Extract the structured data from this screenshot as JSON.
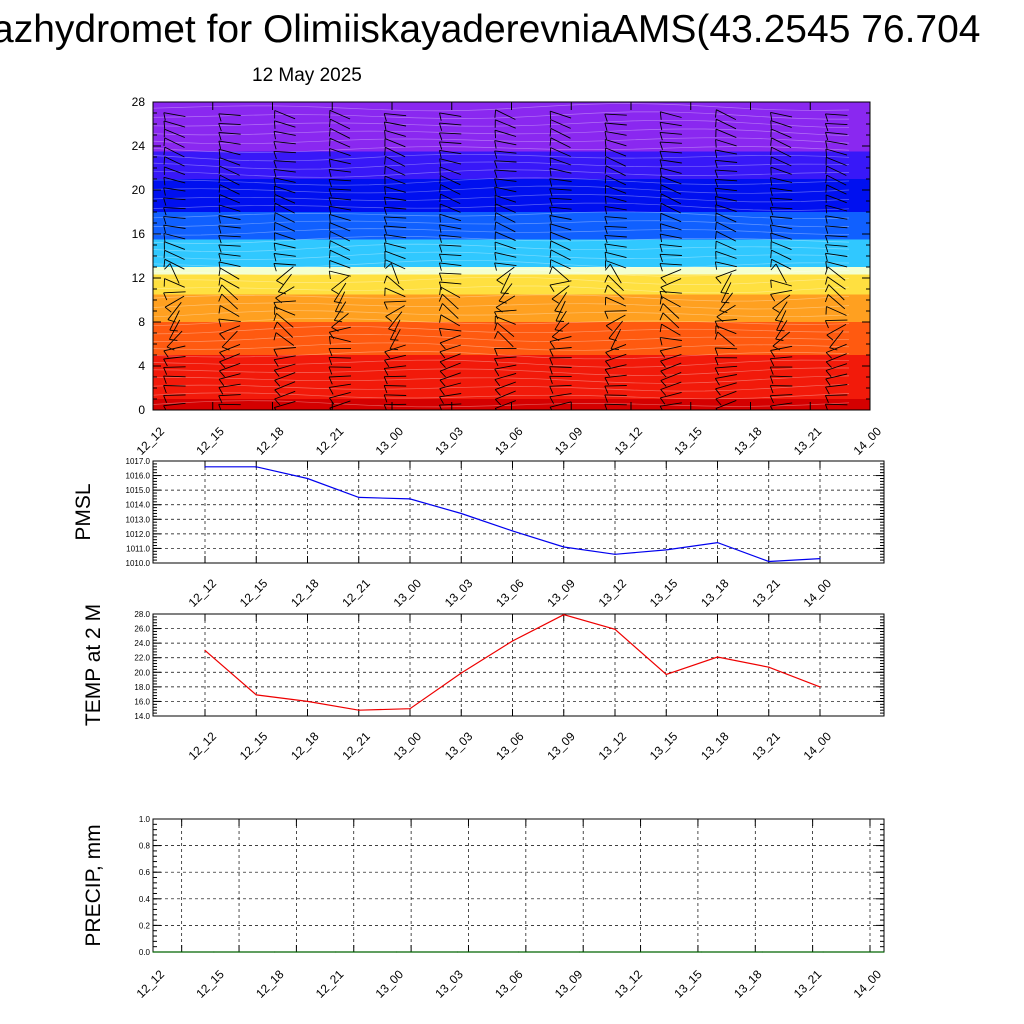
{
  "header": {
    "title": "azhydromet for OlimiiskayaderevniaAMS(43.2545 76.704",
    "subtitle": "12 May 2025"
  },
  "colors": {
    "pmsl": "#0000ee",
    "temp": "#ee0000",
    "precip": "#006400",
    "grid": "#000000",
    "barbs": "#000000"
  },
  "chart_data": [
    {
      "type": "heatmap",
      "title": "",
      "ylim": [
        0,
        28
      ],
      "y_ticks": [
        "0",
        "4",
        "8",
        "12",
        "16",
        "20",
        "24",
        "28"
      ],
      "x_ticks": [
        "12_12",
        "12_15",
        "12_18",
        "12_21",
        "13_00",
        "13_03",
        "13_06",
        "13_09",
        "13_12",
        "13_15",
        "13_18",
        "13_21",
        "14_00"
      ],
      "color_bands": [
        {
          "from": 0,
          "to": 1,
          "color": "#d40000"
        },
        {
          "from": 1,
          "to": 5,
          "color": "#f21a0a"
        },
        {
          "from": 5,
          "to": 8,
          "color": "#ff5a10"
        },
        {
          "from": 8,
          "to": 10.5,
          "color": "#ffa020"
        },
        {
          "from": 10.5,
          "to": 12.3,
          "color": "#ffe040"
        },
        {
          "from": 12.3,
          "to": 13,
          "color": "#f4ffd0"
        },
        {
          "from": 13,
          "to": 15.5,
          "color": "#30c8ff"
        },
        {
          "from": 15.5,
          "to": 18,
          "color": "#1060ff"
        },
        {
          "from": 18,
          "to": 21,
          "color": "#0010f0"
        },
        {
          "from": 21,
          "to": 23.5,
          "color": "#3818f8"
        },
        {
          "from": 23.5,
          "to": 28,
          "color": "#8a28f0"
        }
      ],
      "wind_barbs": true
    },
    {
      "type": "line",
      "ylabel": "PMSL",
      "ylim": [
        1010.0,
        1017.0
      ],
      "y_ticks": [
        "1010.0",
        "1011.0",
        "1012.0",
        "1013.0",
        "1014.0",
        "1015.0",
        "1016.0",
        "1017.0"
      ],
      "x_ticks": [
        "12_12",
        "12_15",
        "12_18",
        "12_21",
        "13_00",
        "13_03",
        "13_06",
        "13_09",
        "13_12",
        "13_15",
        "13_18",
        "13_21",
        "14_00"
      ],
      "grid": true,
      "series": [
        {
          "values": [
            1016.6,
            1016.6,
            1015.8,
            1014.5,
            1014.4,
            1013.4,
            1012.2,
            1011.1,
            1010.6,
            1010.9,
            1011.4,
            1010.1,
            1010.3
          ]
        }
      ]
    },
    {
      "type": "line",
      "ylabel": "TEMP at 2 M",
      "ylim": [
        14.0,
        28.0
      ],
      "y_ticks": [
        "14.0",
        "16.0",
        "18.0",
        "20.0",
        "22.0",
        "24.0",
        "26.0",
        "28.0"
      ],
      "x_ticks": [
        "12_12",
        "12_15",
        "12_18",
        "12_21",
        "13_00",
        "13_03",
        "13_06",
        "13_09",
        "13_12",
        "13_15",
        "13_18",
        "13_21",
        "14_00"
      ],
      "grid": true,
      "series": [
        {
          "values": [
            23.0,
            16.9,
            16.0,
            14.8,
            15.0,
            19.9,
            24.3,
            27.9,
            25.9,
            19.7,
            22.1,
            20.7,
            18.0
          ]
        }
      ]
    },
    {
      "type": "line",
      "ylabel": "PRECIP, mm",
      "ylim": [
        0.0,
        1.0
      ],
      "y_ticks": [
        "0.0",
        "0.2",
        "0.4",
        "0.6",
        "0.8",
        "1.0"
      ],
      "x_ticks": [
        "12_12",
        "12_15",
        "12_18",
        "12_21",
        "13_00",
        "13_03",
        "13_06",
        "13_09",
        "13_12",
        "13_15",
        "13_18",
        "13_21",
        "14_00"
      ],
      "grid": true,
      "series": [
        {
          "values": [
            0,
            0,
            0,
            0,
            0,
            0,
            0,
            0,
            0,
            0,
            0,
            0,
            0
          ]
        }
      ]
    }
  ]
}
